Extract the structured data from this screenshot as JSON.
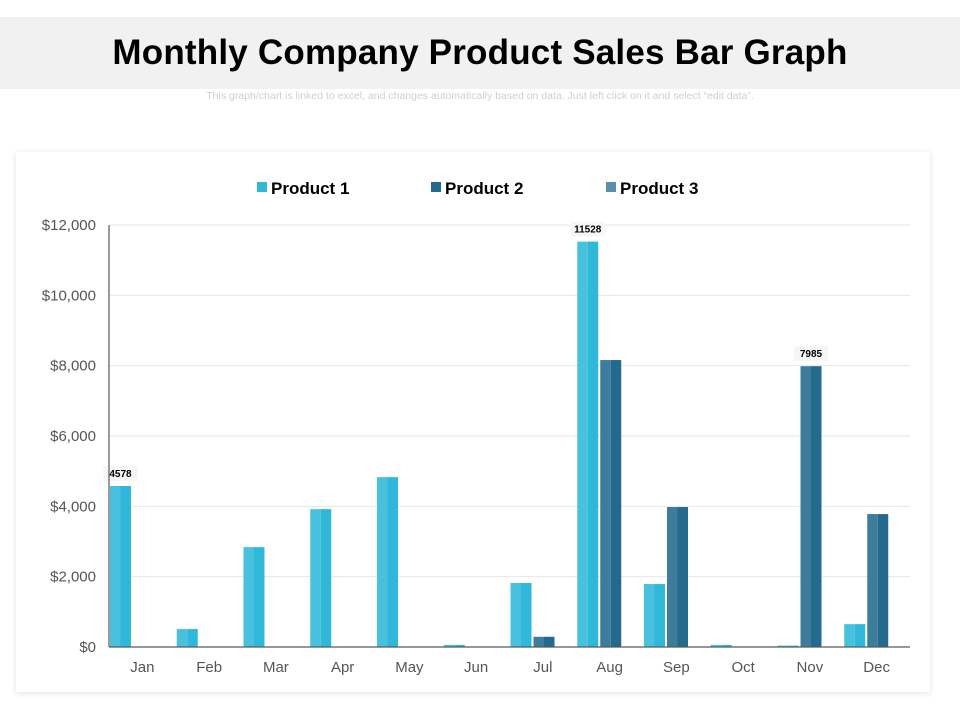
{
  "header": {
    "title": "Monthly Company Product Sales Bar Graph",
    "subtitle": "This graph/chart is linked to excel, and changes automatically based on data. Just left click on it and select “edit data”."
  },
  "chart_data": {
    "type": "bar",
    "title": "Monthly Company Product Sales Bar Graph",
    "xlabel": "",
    "ylabel": "",
    "categories": [
      "Jan",
      "Feb",
      "Mar",
      "Apr",
      "May",
      "Jun",
      "Jul",
      "Aug",
      "Sep",
      "Oct",
      "Nov",
      "Dec"
    ],
    "series": [
      {
        "name": "Product 1",
        "color": "#2fb8d9",
        "values": [
          4578,
          510,
          2840,
          3920,
          4830,
          60,
          1820,
          11528,
          1790,
          60,
          40,
          650
        ]
      },
      {
        "name": "Product 2",
        "color": "#236a8d",
        "values": [
          0,
          0,
          0,
          0,
          0,
          0,
          290,
          8160,
          3980,
          0,
          7985,
          3780
        ]
      },
      {
        "name": "Product 3",
        "color": "#5b8ea8",
        "values": [
          0,
          0,
          0,
          0,
          0,
          0,
          0,
          0,
          0,
          0,
          0,
          0
        ]
      }
    ],
    "data_labels": [
      {
        "series": "Product 1",
        "category": "Jan",
        "text": "4578"
      },
      {
        "series": "Product 1",
        "category": "Aug",
        "text": "11528"
      },
      {
        "series": "Product 2",
        "category": "Nov",
        "text": "7985"
      }
    ],
    "ylim": [
      0,
      12000
    ],
    "yticks": [
      0,
      2000,
      4000,
      6000,
      8000,
      10000,
      12000
    ],
    "ytick_labels": [
      "$0",
      "$2,000",
      "$4,000",
      "$6,000",
      "$8,000",
      "$10,000",
      "$12,000"
    ],
    "grid": true,
    "legend_position": "top-center"
  }
}
